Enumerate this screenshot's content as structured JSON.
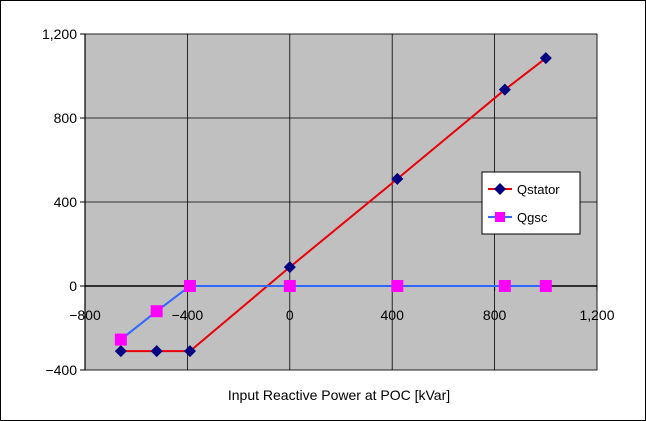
{
  "chart_data": {
    "type": "line",
    "title": "",
    "xlabel": "Input Reactive Power at POC [kVar]",
    "ylabel": "",
    "xlim": [
      -800,
      1200
    ],
    "ylim": [
      -400,
      1200
    ],
    "x_ticks": [
      -800,
      -400,
      0,
      400,
      800,
      1200
    ],
    "y_ticks": [
      -400,
      0,
      400,
      800,
      1200
    ],
    "x_tick_labels": [
      "−800",
      "−400",
      "0",
      "400",
      "800",
      "1,200"
    ],
    "y_tick_labels": [
      "−400",
      "0",
      "400",
      "800",
      "1,200"
    ],
    "grid": true,
    "legend_position": "right",
    "plot_background": "#c0c0c0",
    "series": [
      {
        "name": "Qstator",
        "color": "#e8000b",
        "marker_color": "#000080",
        "marker": "diamond",
        "points": [
          [
            -660,
            -310
          ],
          [
            -520,
            -310
          ],
          [
            -390,
            -310
          ],
          [
            0,
            90
          ],
          [
            420,
            510
          ],
          [
            840,
            935
          ],
          [
            1000,
            1085
          ]
        ]
      },
      {
        "name": "Qgsc",
        "color": "#3366ff",
        "marker_color": "#ff00ff",
        "marker": "square",
        "points": [
          [
            -660,
            -255
          ],
          [
            -520,
            -120
          ],
          [
            -390,
            0
          ],
          [
            0,
            0
          ],
          [
            420,
            0
          ],
          [
            840,
            0
          ],
          [
            1000,
            0
          ]
        ]
      }
    ]
  }
}
